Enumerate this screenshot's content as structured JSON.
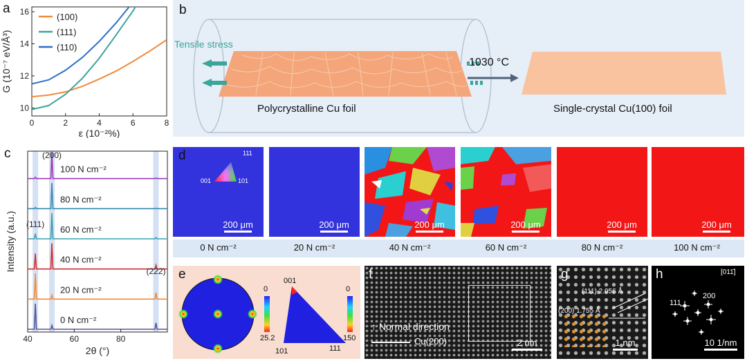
{
  "panel_labels": {
    "a": "a",
    "b": "b",
    "c": "c",
    "d": "d",
    "e": "e",
    "f": "f",
    "g": "g",
    "h": "h"
  },
  "colors": {
    "orange": "#f28a3a",
    "teal": "#3aa59a",
    "blue": "#2b6fc9",
    "ebsd_blue": "#3333dd",
    "ebsd_red": "#f21616",
    "panel_b_bg": "#e6eef8",
    "foil": "#f8c39e"
  },
  "chart_data": [
    {
      "type": "line",
      "panel": "a",
      "xlabel": "ε (10⁻²%)",
      "ylabel": "G (10⁻⁷ eV/Å³)",
      "xlim": [
        0,
        8
      ],
      "ylim": [
        9.5,
        16.3
      ],
      "xticks": [
        "0",
        "2",
        "4",
        "6",
        "8"
      ],
      "yticks": [
        "10",
        "12",
        "14",
        "16"
      ],
      "legend_position": "top-left",
      "series": [
        {
          "name": "(100)",
          "color": "#f28a3a",
          "x": [
            0,
            1,
            2,
            3,
            4,
            5,
            6,
            7,
            8
          ],
          "y": [
            10.7,
            10.8,
            11.0,
            11.35,
            11.8,
            12.3,
            12.9,
            13.55,
            14.25
          ]
        },
        {
          "name": "(111)",
          "color": "#3aa59a",
          "x": [
            0,
            1,
            2,
            3,
            4,
            5,
            5.5,
            6,
            6.5
          ],
          "y": [
            9.9,
            10.15,
            10.85,
            11.85,
            13.1,
            14.55,
            15.3,
            16.05,
            16.9
          ]
        },
        {
          "name": "(110)",
          "color": "#2b6fc9",
          "x": [
            0,
            1,
            2,
            3,
            4,
            5,
            5.5,
            6
          ],
          "y": [
            11.5,
            11.75,
            12.35,
            13.15,
            14.15,
            15.3,
            15.95,
            16.6
          ]
        }
      ]
    },
    {
      "type": "line",
      "panel": "c",
      "xlabel": "2θ (°)",
      "ylabel": "Intensity (a.u.)",
      "xlim": [
        40,
        100
      ],
      "xticks": [
        "40",
        "60",
        "80"
      ],
      "peaks": [
        {
          "label": "(111)",
          "x": 43.3
        },
        {
          "label": "(200)",
          "x": 50.4
        },
        {
          "label": "(222)",
          "x": 95.1
        }
      ],
      "series": [
        {
          "name": "0 N cm⁻²",
          "color": "#555599",
          "peak_heights": [
            1.0,
            0.15,
            0.25
          ]
        },
        {
          "name": "20 N cm⁻²",
          "color": "#f28a3a",
          "peak_heights": [
            1.0,
            0.15,
            0.25
          ]
        },
        {
          "name": "40 N cm⁻²",
          "color": "#d03030",
          "peak_heights": [
            0.6,
            1.0,
            0.15
          ]
        },
        {
          "name": "60 N cm⁻²",
          "color": "#3aa0b0",
          "peak_heights": [
            0.2,
            1.0,
            0.05
          ]
        },
        {
          "name": "80 N cm⁻²",
          "color": "#3a8ab0",
          "peak_heights": [
            0.05,
            1.0,
            0.02
          ]
        },
        {
          "name": "100 N cm⁻²",
          "color": "#9b3ab8",
          "peak_heights": [
            0.05,
            1.0,
            0.02
          ]
        }
      ]
    }
  ],
  "panel_b": {
    "tensile_label": "Tensile stress",
    "left_caption": "Polycrystalline Cu foil",
    "right_caption": "Single-crystal Cu(100) foil",
    "temperature": "1030 °C"
  },
  "panel_d": {
    "ipf_labels": {
      "top": "111",
      "left": "001",
      "right": "101"
    },
    "scale_label": "200 μm",
    "forces": [
      "0 N cm⁻²",
      "20 N cm⁻²",
      "40 N cm⁻²",
      "60 N cm⁻²",
      "80 N cm⁻²",
      "100 N cm⁻²"
    ]
  },
  "panel_e": {
    "colorbar1": {
      "max": "0",
      "min": "25.2"
    },
    "colorbar2": {
      "max": "0",
      "min": "150"
    },
    "triangle_labels": {
      "top": "001",
      "bottom_left": "101",
      "bottom_right": "111"
    }
  },
  "panel_f": {
    "normal_direction": "Normal direction",
    "lattice_label": "Cu(200)",
    "scale": "2 nm"
  },
  "panel_g": {
    "d111": "(111) 2.056 Å",
    "d200": "(200) 1.755 Å",
    "scale": "1 nm"
  },
  "panel_h": {
    "zone_axis": "[011̄]",
    "spot_200": "200",
    "spot_111": "111",
    "scale": "10 1/nm"
  }
}
